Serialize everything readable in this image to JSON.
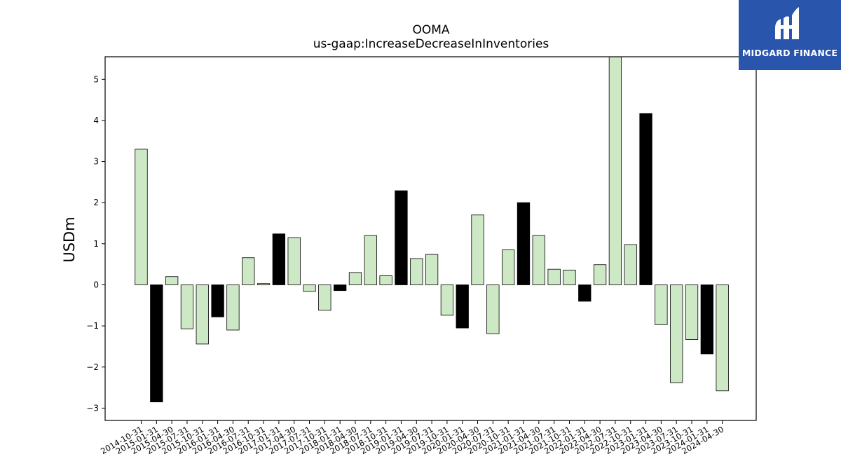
{
  "chart_data": {
    "type": "bar",
    "title": "OOMA",
    "subtitle": "us-gaap:IncreaseDecreaseInInventories",
    "xlabel": "",
    "ylabel": "USDm",
    "ylim": [
      -3.3,
      5.55
    ],
    "yticks": [
      -3,
      -2,
      -1,
      0,
      1,
      2,
      3,
      4,
      5
    ],
    "ytick_labels": [
      "−3",
      "−2",
      "−1",
      "0",
      "1",
      "2",
      "3",
      "4",
      "5"
    ],
    "grid": false,
    "legend": "none",
    "categories": [
      "2014-10-31",
      "2015-01-31",
      "2015-04-30",
      "2015-07-31",
      "2015-10-31",
      "2016-01-31",
      "2016-04-30",
      "2016-07-31",
      "2016-10-31",
      "2017-01-31",
      "2017-04-30",
      "2017-07-31",
      "2017-10-31",
      "2018-01-31",
      "2018-04-30",
      "2018-07-31",
      "2018-10-31",
      "2019-01-31",
      "2019-04-30",
      "2019-07-31",
      "2019-10-31",
      "2020-01-31",
      "2020-04-30",
      "2020-07-31",
      "2020-10-31",
      "2021-01-31",
      "2021-04-30",
      "2021-07-31",
      "2021-10-31",
      "2022-01-31",
      "2022-04-30",
      "2022-07-31",
      "2022-10-31",
      "2023-01-31",
      "2023-04-30",
      "2023-07-31",
      "2023-10-31",
      "2024-01-31",
      "2024-04-30"
    ],
    "values": [
      3.3,
      -2.85,
      0.2,
      -1.07,
      -1.44,
      -0.78,
      -1.1,
      0.66,
      0.03,
      1.24,
      1.15,
      -0.16,
      -0.62,
      -0.14,
      0.3,
      1.2,
      0.22,
      2.29,
      0.64,
      0.74,
      -0.74,
      -1.05,
      1.7,
      -1.19,
      0.85,
      2.0,
      1.2,
      0.38,
      0.36,
      -0.4,
      0.49,
      5.55,
      0.98,
      4.17,
      -0.97,
      -2.38,
      -1.33,
      -1.68,
      -2.58
    ],
    "highlighted": [
      false,
      true,
      false,
      false,
      false,
      true,
      false,
      false,
      false,
      true,
      false,
      false,
      false,
      true,
      false,
      false,
      false,
      true,
      false,
      false,
      false,
      true,
      false,
      false,
      false,
      true,
      false,
      false,
      false,
      true,
      false,
      false,
      false,
      true,
      false,
      false,
      false,
      true,
      false
    ],
    "colors": {
      "normal": "#cde8c5",
      "highlight": "#000000",
      "edge": "#000000"
    }
  },
  "logo": {
    "text": "MIDGARD FINANCE",
    "background": "#2a55ad",
    "color": "#ffffff"
  }
}
